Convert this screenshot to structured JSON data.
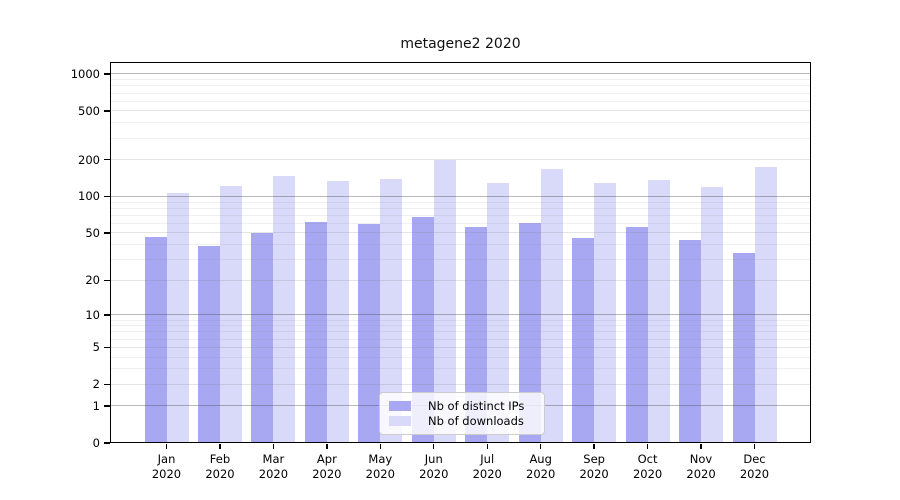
{
  "chart_data": {
    "type": "bar",
    "title": "metagene2 2020",
    "categories": [
      "Jan",
      "Feb",
      "Mar",
      "Apr",
      "May",
      "Jun",
      "Jul",
      "Aug",
      "Sep",
      "Oct",
      "Nov",
      "Dec"
    ],
    "category_year": "2020",
    "series": [
      {
        "name": "Nb of distinct IPs",
        "color": "#a8a8f2",
        "values": [
          46,
          39,
          50,
          62,
          59,
          68,
          56,
          61,
          45,
          56,
          44,
          34
        ]
      },
      {
        "name": "Nb of downloads",
        "color": "#d9d9f9",
        "values": [
          107,
          122,
          148,
          133,
          138,
          199,
          130,
          168,
          128,
          136,
          120,
          175
        ]
      }
    ],
    "y_ticks": [
      0,
      1,
      2,
      5,
      10,
      20,
      50,
      100,
      200,
      500,
      1000
    ],
    "yscale": "symlog (log1p)",
    "ylim": [
      0,
      1300
    ],
    "xlabel": "",
    "ylabel": "",
    "grid": "on",
    "legend_position": "lower center"
  }
}
